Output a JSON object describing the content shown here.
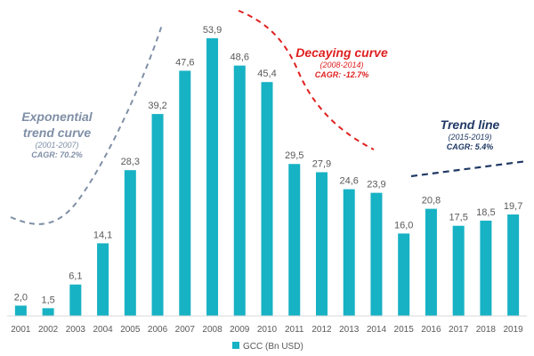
{
  "chart_data": {
    "type": "bar",
    "categories": [
      "2001",
      "2002",
      "2003",
      "2004",
      "2005",
      "2006",
      "2007",
      "2008",
      "2009",
      "2010",
      "2011",
      "2012",
      "2013",
      "2014",
      "2015",
      "2016",
      "2017",
      "2018",
      "2019"
    ],
    "series": [
      {
        "name": "GCC (Bn USD)",
        "values": [
          2.0,
          1.5,
          6.1,
          14.1,
          28.3,
          39.2,
          47.6,
          53.9,
          48.6,
          45.4,
          29.5,
          27.9,
          24.6,
          23.9,
          16.0,
          20.8,
          17.5,
          18.5,
          19.7
        ],
        "labels": [
          "2,0",
          "1,5",
          "6,1",
          "14,1",
          "28,3",
          "39,2",
          "47,6",
          "53,9",
          "48,6",
          "45,4",
          "29,5",
          "27,9",
          "24,6",
          "23,9",
          "16,0",
          "20,8",
          "17,5",
          "18,5",
          "19,7"
        ],
        "color": "#17B2C4"
      }
    ],
    "ylim": [
      0,
      53.9
    ],
    "grid": false,
    "legend_position": "bottom-center",
    "annotations": [
      {
        "title_lines": [
          "Exponential",
          "trend curve"
        ],
        "period": "(2001-2007)",
        "cagr": "CAGR: 70.2%",
        "color": "#7F8FA6",
        "title_color": "#7F8FA6",
        "cagr_color": "#7F8FA6",
        "line_style": "dashed"
      },
      {
        "title_lines": [
          "Decaying curve"
        ],
        "period": "(2008-2014)",
        "cagr": "CAGR: -12.7%",
        "color": "#E02020",
        "title_color": "#E02020",
        "cagr_color": "#E02020",
        "line_style": "dashed"
      },
      {
        "title_lines": [
          "Trend line"
        ],
        "period": "(2015-2019)",
        "cagr": "CAGR: 5.4%",
        "color": "#1F3864",
        "title_color": "#1F3864",
        "cagr_color": "#1F3864",
        "line_style": "dashed"
      }
    ]
  }
}
